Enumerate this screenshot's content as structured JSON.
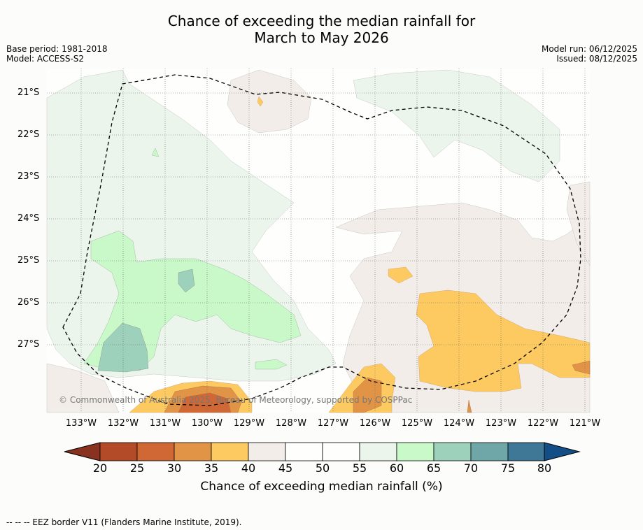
{
  "title_line1": "Chance of exceeding the median rainfall for",
  "title_line2": "March to May 2026",
  "base_period": "Base period: 1981-2018",
  "model": "Model: ACCESS-S2",
  "model_run": "Model run: 06/12/2025",
  "issued": "Issued: 08/12/2025",
  "lat_labels": [
    "21°S",
    "22°S",
    "23°S",
    "24°S",
    "25°S",
    "26°S",
    "27°S"
  ],
  "lon_labels": [
    "133°W",
    "132°W",
    "131°W",
    "130°W",
    "129°W",
    "128°W",
    "127°W",
    "126°W",
    "125°W",
    "124°W",
    "123°W",
    "122°W",
    "121°W"
  ],
  "copyright": "© Commonwealth of Australia 2025, Bureau of Meteorology, supported by COSPPac",
  "colorbar": {
    "ticks": [
      "20",
      "25",
      "30",
      "35",
      "40",
      "45",
      "50",
      "55",
      "60",
      "65",
      "70",
      "75",
      "80"
    ],
    "colors": [
      "#b34b28",
      "#cf6835",
      "#e19445",
      "#fdca62",
      "#f2ede8",
      "#fefefc",
      "#fefefc",
      "#ecf5ec",
      "#caf9c9",
      "#9dd1bb",
      "#6fa6a8",
      "#3f7896"
    ],
    "low_color": "#8a3220",
    "high_color": "#134f86",
    "label": "Chance of exceeding median rainfall (%)"
  },
  "footer": "--  --  -- EEZ border V11 (Flanders Marine Institute, 2019)."
}
